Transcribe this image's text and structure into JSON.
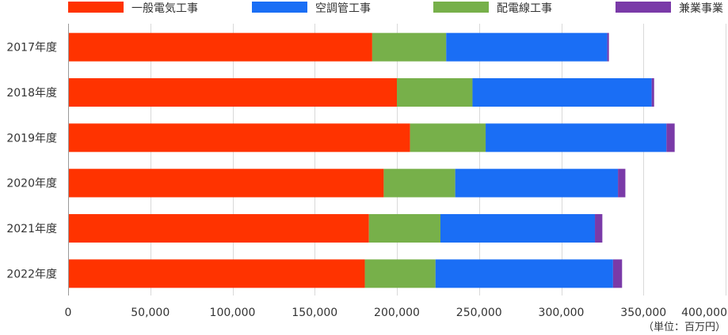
{
  "chart_data": {
    "type": "bar",
    "orientation": "horizontal",
    "stacked": true,
    "categories": [
      "2017年度",
      "2018年度",
      "2019年度",
      "2020年度",
      "2021年度",
      "2022年度"
    ],
    "series": [
      {
        "name": "一般電気工事",
        "color": "#ff3300",
        "values": [
          185000,
          200000,
          208000,
          192000,
          183000,
          180500
        ]
      },
      {
        "name": "配電線工事",
        "color": "#77b04a",
        "values": [
          45000,
          46000,
          46000,
          43500,
          43500,
          43000
        ]
      },
      {
        "name": "空調管工事",
        "color": "#1a6ef5",
        "values": [
          98000,
          109000,
          110000,
          99000,
          94000,
          108000
        ]
      },
      {
        "name": "兼業事業",
        "color": "#7a3aa8",
        "values": [
          1000,
          1500,
          5000,
          4500,
          4500,
          5500
        ]
      }
    ],
    "legend_order": [
      "一般電気工事",
      "空調管工事",
      "配電線工事",
      "兼業事業"
    ],
    "xlim": [
      0,
      400000
    ],
    "xticks": [
      0,
      50000,
      100000,
      150000,
      200000,
      250000,
      300000,
      350000,
      400000
    ],
    "xtick_labels": [
      "0",
      "50,000",
      "100,000",
      "150,000",
      "200,000",
      "250,000",
      "300,000",
      "350,000",
      "400,000"
    ],
    "unit_label": "（単位：百万円）",
    "grid": true,
    "legend_position": "top"
  }
}
